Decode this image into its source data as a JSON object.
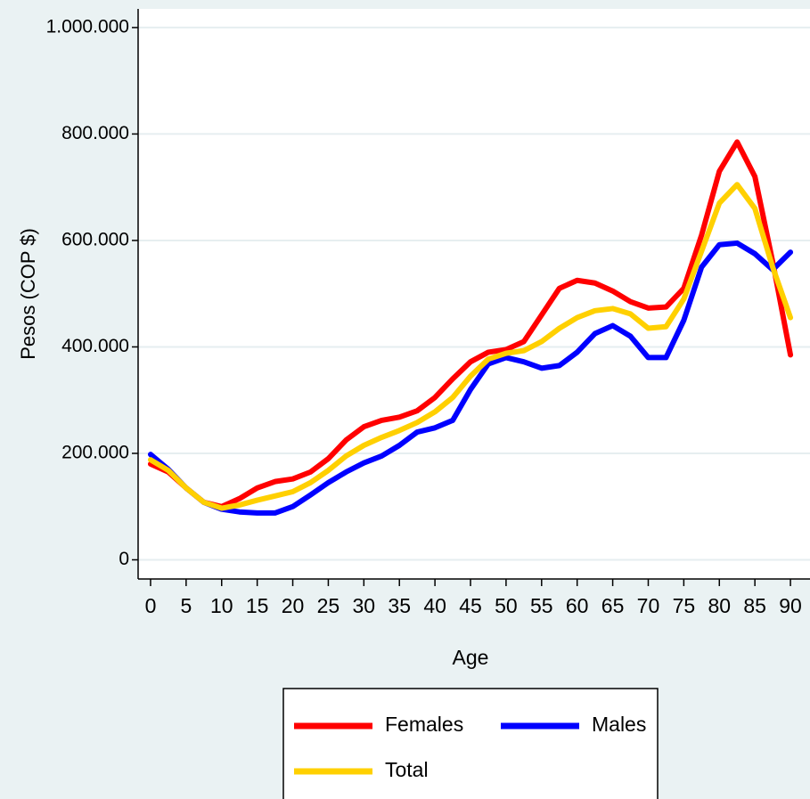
{
  "chart_data": {
    "type": "line",
    "x_label": "Age",
    "y_label": "Pesos (COP $)",
    "x": [
      0,
      2.5,
      5,
      7.5,
      10,
      12.5,
      15,
      17.5,
      20,
      22.5,
      25,
      27.5,
      30,
      32.5,
      35,
      37.5,
      40,
      42.5,
      45,
      47.5,
      50,
      52.5,
      55,
      57.5,
      60,
      62.5,
      65,
      67.5,
      70,
      72.5,
      75,
      77.5,
      80,
      82.5,
      85,
      87.5,
      90
    ],
    "series": [
      {
        "name": "Females",
        "color": "#ff0000",
        "values": [
          180000,
          165000,
          135000,
          108000,
          100000,
          115000,
          135000,
          147000,
          152000,
          165000,
          190000,
          225000,
          250000,
          262000,
          268000,
          280000,
          305000,
          340000,
          372000,
          390000,
          395000,
          410000,
          460000,
          510000,
          525000,
          520000,
          505000,
          485000,
          473000,
          475000,
          510000,
          610000,
          730000,
          785000,
          720000,
          560000,
          385000
        ]
      },
      {
        "name": "Males",
        "color": "#0000ff",
        "values": [
          198000,
          170000,
          135000,
          108000,
          95000,
          90000,
          88000,
          88000,
          100000,
          122000,
          145000,
          165000,
          182000,
          195000,
          215000,
          240000,
          248000,
          262000,
          320000,
          368000,
          380000,
          372000,
          360000,
          365000,
          390000,
          425000,
          440000,
          420000,
          380000,
          380000,
          450000,
          550000,
          592000,
          595000,
          575000,
          545000,
          578000
        ]
      },
      {
        "name": "Total",
        "color": "#ffd000",
        "values": [
          188000,
          168000,
          135000,
          108000,
          97000,
          103000,
          112000,
          120000,
          128000,
          145000,
          168000,
          195000,
          215000,
          230000,
          243000,
          258000,
          278000,
          305000,
          345000,
          377000,
          388000,
          393000,
          410000,
          435000,
          455000,
          468000,
          472000,
          462000,
          435000,
          438000,
          490000,
          580000,
          670000,
          705000,
          660000,
          550000,
          455000
        ]
      }
    ],
    "xlim": [
      -1.75,
      92.75
    ],
    "xticks": [
      0,
      5,
      10,
      15,
      20,
      25,
      30,
      35,
      40,
      45,
      50,
      55,
      60,
      65,
      70,
      75,
      80,
      85,
      90
    ],
    "ylim": [
      -36000,
      1035000
    ],
    "yticks": [
      0,
      {
        "value": 200000,
        "label": "200.000"
      },
      {
        "value": 400000,
        "label": "400.000"
      },
      {
        "value": 600000,
        "label": "600.000"
      },
      {
        "value": 800000,
        "label": "800.000"
      },
      {
        "value": 1000000,
        "label": "1.000.000"
      }
    ],
    "grid": true
  }
}
